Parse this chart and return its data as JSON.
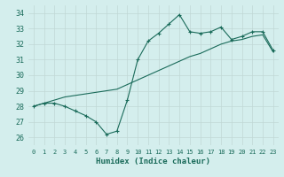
{
  "xlabel": "Humidex (Indice chaleur)",
  "xlim": [
    -0.5,
    23.5
  ],
  "ylim": [
    25.5,
    34.5
  ],
  "yticks": [
    26,
    27,
    28,
    29,
    30,
    31,
    32,
    33,
    34
  ],
  "xticks": [
    0,
    1,
    2,
    3,
    4,
    5,
    6,
    7,
    8,
    9,
    10,
    11,
    12,
    13,
    14,
    15,
    16,
    17,
    18,
    19,
    20,
    21,
    22,
    23
  ],
  "bg_color": "#d4eeed",
  "grid_color": "#c0d8d5",
  "line_color": "#1a6b5a",
  "curve1_x": [
    0,
    1,
    2,
    3,
    4,
    5,
    6,
    7,
    8,
    9,
    10,
    11,
    12,
    13,
    14,
    15,
    16,
    17,
    18,
    19,
    20,
    21,
    22,
    23
  ],
  "curve1_y": [
    28.0,
    28.2,
    28.2,
    28.0,
    27.7,
    27.4,
    27.0,
    26.2,
    26.4,
    28.4,
    31.0,
    32.2,
    32.7,
    33.3,
    33.9,
    32.8,
    32.7,
    32.8,
    33.1,
    32.3,
    32.5,
    32.8,
    32.8,
    31.6
  ],
  "curve2_x": [
    0,
    1,
    2,
    3,
    4,
    5,
    6,
    7,
    8,
    9,
    10,
    11,
    12,
    13,
    14,
    15,
    16,
    17,
    18,
    19,
    20,
    21,
    22,
    23
  ],
  "curve2_y": [
    28.0,
    28.2,
    28.4,
    28.6,
    28.7,
    28.8,
    28.9,
    29.0,
    29.1,
    29.4,
    29.7,
    30.0,
    30.3,
    30.6,
    30.9,
    31.2,
    31.4,
    31.7,
    32.0,
    32.2,
    32.3,
    32.5,
    32.6,
    31.5
  ]
}
